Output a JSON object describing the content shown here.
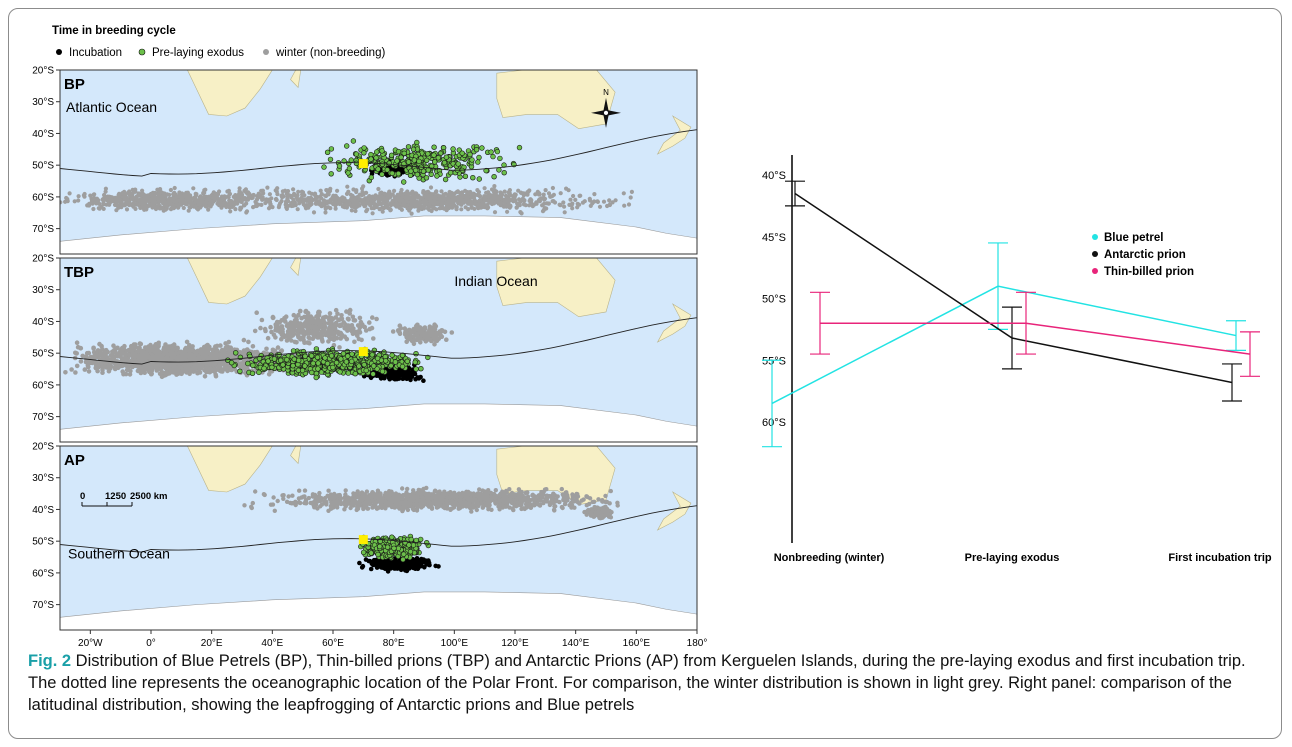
{
  "legend": {
    "title": "Time in breeding cycle",
    "items": [
      {
        "label": "Incubation",
        "color": "#000000"
      },
      {
        "label": "Pre-laying exodus",
        "color": "#6cc04a"
      },
      {
        "label": "winter (non-breeding)",
        "color": "#9e9e9e"
      }
    ]
  },
  "maps": {
    "panels": [
      {
        "id": "BP",
        "label": "BP",
        "ocean_label": "Atlantic Ocean",
        "show_compass": true,
        "compass_letter": "N"
      },
      {
        "id": "TBP",
        "label": "TBP",
        "ocean_label": "Indian Ocean"
      },
      {
        "id": "AP",
        "label": "AP",
        "ocean_label": "Southern Ocean",
        "scale_labels": [
          "0",
          "1250",
          "2500 km"
        ]
      }
    ],
    "lat_ticks": [
      "20°S",
      "30°S",
      "40°S",
      "50°S",
      "60°S",
      "70°S"
    ],
    "lon_ticks": [
      "20°W",
      "0°",
      "20°E",
      "40°E",
      "60°E",
      "80°E",
      "100°E",
      "120°E",
      "140°E",
      "160°E",
      "180°"
    ],
    "colors": {
      "ocean": "#d4e8fb",
      "land": "#f7f0c6",
      "antarctica": "#ffffff",
      "colony": "#ffee00",
      "polar_front": "#222222"
    }
  },
  "chart_data": {
    "type": "line",
    "categories": [
      "Nonbreeding (winter)",
      "Pre-laying exodus",
      "First incubation trip"
    ],
    "ylabel": "",
    "y_ticks": [
      "40°S",
      "45°S",
      "50°S",
      "55°S",
      "60°S"
    ],
    "ylim": [
      39,
      62
    ],
    "legend_position": "right",
    "series": [
      {
        "name": "Blue petrel",
        "color": "#22e3e3",
        "values": [
          58.5,
          49.0,
          53.0
        ],
        "err": [
          3.5,
          3.5,
          1.2
        ]
      },
      {
        "name": "Antarctic prion",
        "color": "#111111",
        "values": [
          41.5,
          53.2,
          56.8
        ],
        "err": [
          1.0,
          2.5,
          1.5
        ]
      },
      {
        "name": "Thin-billed prion",
        "color": "#e8247a",
        "values": [
          52.0,
          52.0,
          54.5
        ],
        "err": [
          2.5,
          2.5,
          1.8
        ]
      }
    ]
  },
  "caption": {
    "label": "Fig. 2",
    "text": " Distribution of Blue Petrels (BP), Thin-billed prions (TBP) and Antarctic Prions (AP) from Kerguelen Islands, during the pre-laying exodus and first incubation trip. The dotted line represents the oceanographic location of the Polar Front. For comparison, the winter distribution is shown in light grey. Right panel: comparison of the latitudinal distribution, showing the leapfrogging of Antarctic prions and Blue petrels"
  }
}
